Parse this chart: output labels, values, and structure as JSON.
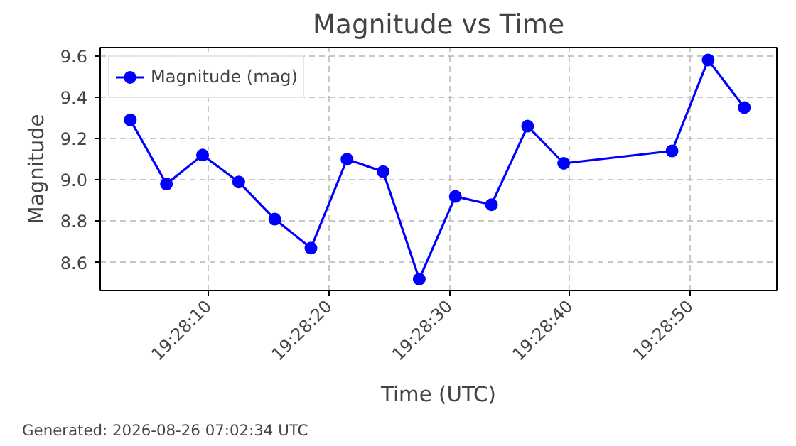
{
  "chart_data": {
    "type": "line",
    "title": "Magnitude vs Time",
    "xlabel": "Time (UTC)",
    "ylabel": "Magnitude",
    "x": [
      19.467639,
      19.468472,
      19.469306,
      19.470139,
      19.470972,
      19.471806,
      19.472639,
      19.473472,
      19.474306,
      19.475139,
      19.475972,
      19.476806,
      19.477639,
      19.480139,
      19.480972,
      19.481806
    ],
    "series": [
      {
        "name": "Magnitude (mag)",
        "color": "#0000ff",
        "values": [
          9.29,
          8.98,
          9.12,
          8.99,
          8.81,
          8.67,
          9.1,
          9.04,
          8.52,
          8.92,
          8.88,
          9.26,
          9.08,
          9.14,
          9.58,
          9.35
        ]
      }
    ],
    "xlim": [
      19.466944,
      19.482556
    ],
    "xticks": [
      {
        "value": 19.469444,
        "label": "19:28:10"
      },
      {
        "value": 19.472222,
        "label": "19:28:20"
      },
      {
        "value": 19.475,
        "label": "19:28:30"
      },
      {
        "value": 19.477778,
        "label": "19:28:40"
      },
      {
        "value": 19.480556,
        "label": "19:28:50"
      }
    ],
    "ylim": [
      8.465,
      9.64
    ],
    "yticks": [
      {
        "value": 8.6,
        "label": "8.6"
      },
      {
        "value": 8.8,
        "label": "8.8"
      },
      {
        "value": 9.0,
        "label": "9.0"
      },
      {
        "value": 9.2,
        "label": "9.2"
      },
      {
        "value": 9.4,
        "label": "9.4"
      },
      {
        "value": 9.6,
        "label": "9.6"
      }
    ],
    "grid": true,
    "legend": "top left",
    "marker": "circle",
    "line_style": "solid",
    "annotations": [
      "Generated: 2026-08-26 07:02:34 UTC"
    ]
  }
}
